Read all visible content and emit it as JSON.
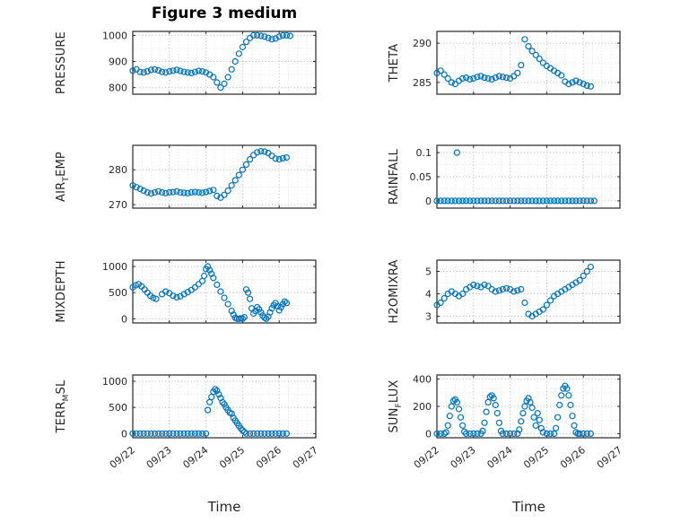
{
  "title": "Figure 3 medium",
  "x_axis": {
    "label": "Time",
    "tick_labels": [
      "09/22",
      "09/23",
      "09/24",
      "09/25",
      "09/26",
      "09/27"
    ],
    "tick_values": [
      0,
      1,
      2,
      3,
      4,
      5
    ],
    "lim": [
      0,
      5
    ]
  },
  "style": {
    "marker_color": "#0072BD",
    "axis_color": "#262626",
    "grid_color": "#b5b5b5",
    "minor_grid_color": "#e2e2e2",
    "title_color": "#000000"
  },
  "chart_data": [
    {
      "type": "scatter",
      "name": "pressure",
      "ylabel": {
        "pre": "PRESSURE",
        "sub": "",
        "post": ""
      },
      "yticks": [
        800,
        900,
        1000
      ],
      "ytick_labels": [
        "800",
        "900",
        "1000"
      ],
      "ylim": [
        775,
        1015
      ],
      "show_xtick_labels": false,
      "x": [
        0,
        0.1,
        0.2,
        0.3,
        0.4,
        0.5,
        0.6,
        0.7,
        0.8,
        0.9,
        1,
        1.1,
        1.2,
        1.3,
        1.4,
        1.5,
        1.6,
        1.7,
        1.8,
        1.9,
        2,
        2.1,
        2.2,
        2.3,
        2.4,
        2.5,
        2.6,
        2.7,
        2.8,
        2.9,
        3,
        3.1,
        3.2,
        3.3,
        3.4,
        3.5,
        3.6,
        3.7,
        3.8,
        3.9,
        4,
        4.1,
        4.2,
        4.3
      ],
      "y": [
        865,
        870,
        860,
        858,
        862,
        868,
        870,
        866,
        860,
        858,
        862,
        865,
        868,
        864,
        860,
        858,
        856,
        860,
        864,
        862,
        858,
        850,
        840,
        820,
        800,
        815,
        840,
        870,
        900,
        930,
        955,
        975,
        990,
        1000,
        1000,
        998,
        995,
        990,
        985,
        988,
        995,
        1000,
        1000,
        998
      ]
    },
    {
      "type": "scatter",
      "name": "theta",
      "ylabel": {
        "pre": "THETA",
        "sub": "",
        "post": ""
      },
      "yticks": [
        285,
        290
      ],
      "ytick_labels": [
        "285",
        "290"
      ],
      "ylim": [
        283.5,
        291.5
      ],
      "show_xtick_labels": false,
      "x": [
        0,
        0.1,
        0.2,
        0.3,
        0.4,
        0.5,
        0.6,
        0.7,
        0.8,
        0.9,
        1,
        1.1,
        1.2,
        1.3,
        1.4,
        1.5,
        1.6,
        1.7,
        1.8,
        1.9,
        2,
        2.1,
        2.2,
        2.3,
        2.4,
        2.5,
        2.6,
        2.7,
        2.8,
        2.9,
        3,
        3.1,
        3.2,
        3.3,
        3.4,
        3.5,
        3.6,
        3.7,
        3.8,
        3.9,
        4,
        4.1,
        4.2
      ],
      "y": [
        286.2,
        286.5,
        286.0,
        285.5,
        285.0,
        284.8,
        285.2,
        285.5,
        285.6,
        285.4,
        285.5,
        285.7,
        285.8,
        285.6,
        285.5,
        285.4,
        285.6,
        285.8,
        285.7,
        285.6,
        285.5,
        285.8,
        286.2,
        287.2,
        290.5,
        289.6,
        289.0,
        288.5,
        288.0,
        287.5,
        287.1,
        286.8,
        286.5,
        286.2,
        285.9,
        285.1,
        284.8,
        285.0,
        285.2,
        285.0,
        284.8,
        284.6,
        284.5
      ]
    },
    {
      "type": "scatter",
      "name": "air-temp",
      "ylabel": {
        "pre": "AIR",
        "sub": "T",
        "post": "EMP"
      },
      "yticks": [
        270,
        280
      ],
      "ytick_labels": [
        "270",
        "280"
      ],
      "ylim": [
        269,
        287
      ],
      "show_xtick_labels": false,
      "x": [
        0,
        0.1,
        0.2,
        0.3,
        0.4,
        0.5,
        0.6,
        0.7,
        0.8,
        0.9,
        1,
        1.1,
        1.2,
        1.3,
        1.4,
        1.5,
        1.6,
        1.7,
        1.8,
        1.9,
        2,
        2.1,
        2.2,
        2.3,
        2.4,
        2.5,
        2.6,
        2.7,
        2.8,
        2.9,
        3,
        3.1,
        3.2,
        3.3,
        3.4,
        3.5,
        3.6,
        3.7,
        3.8,
        3.9,
        4,
        4.1,
        4.2
      ],
      "y": [
        275.5,
        275.0,
        274.5,
        274.0,
        273.5,
        273.2,
        273.5,
        273.8,
        273.5,
        273.3,
        273.5,
        273.6,
        273.8,
        273.5,
        273.4,
        273.3,
        273.5,
        273.6,
        273.5,
        273.4,
        273.6,
        273.9,
        274.2,
        272.5,
        272.0,
        272.8,
        274.0,
        275.5,
        277.0,
        278.5,
        280.0,
        281.5,
        283.0,
        284.2,
        285.0,
        285.3,
        285.2,
        284.8,
        284.0,
        283.2,
        283.0,
        283.3,
        283.5
      ]
    },
    {
      "type": "scatter",
      "name": "rainfall",
      "ylabel": {
        "pre": "RAINFALL",
        "sub": "",
        "post": ""
      },
      "yticks": [
        0,
        0.05,
        0.1
      ],
      "ytick_labels": [
        "0",
        "0.05",
        "0.1"
      ],
      "ylim": [
        -0.015,
        0.115
      ],
      "show_xtick_labels": false,
      "x": [
        0,
        0.1,
        0.2,
        0.3,
        0.4,
        0.5,
        0.6,
        0.7,
        0.8,
        0.9,
        1,
        1.1,
        1.2,
        1.3,
        1.4,
        1.5,
        1.6,
        1.7,
        1.8,
        1.9,
        2,
        2.1,
        2.2,
        2.3,
        2.4,
        2.5,
        2.6,
        2.7,
        2.8,
        2.9,
        3,
        3.1,
        3.2,
        3.3,
        3.4,
        3.5,
        3.6,
        3.7,
        3.8,
        3.9,
        4,
        4.1,
        4.2,
        4.3,
        0.55
      ],
      "y": [
        0,
        0,
        0,
        0,
        0,
        0,
        0,
        0,
        0,
        0,
        0,
        0,
        0,
        0,
        0,
        0,
        0,
        0,
        0,
        0,
        0,
        0,
        0,
        0,
        0,
        0,
        0,
        0,
        0,
        0,
        0,
        0,
        0,
        0,
        0,
        0,
        0,
        0,
        0,
        0,
        0,
        0,
        0,
        0,
        0.1
      ]
    },
    {
      "type": "scatter",
      "name": "mixdepth",
      "ylabel": {
        "pre": "MIXDEPTH",
        "sub": "",
        "post": ""
      },
      "yticks": [
        0,
        500,
        1000
      ],
      "ytick_labels": [
        "0",
        "500",
        "1000"
      ],
      "ylim": [
        -80,
        1120
      ],
      "show_xtick_labels": false,
      "x": [
        0,
        0.08,
        0.16,
        0.24,
        0.32,
        0.4,
        0.48,
        0.56,
        0.64,
        0.8,
        0.9,
        1,
        1.1,
        1.2,
        1.3,
        1.4,
        1.5,
        1.6,
        1.7,
        1.8,
        1.9,
        1.95,
        2,
        2.05,
        2.1,
        2.15,
        2.2,
        2.3,
        2.4,
        2.5,
        2.6,
        2.7,
        2.75,
        2.8,
        2.85,
        2.9,
        2.95,
        3,
        3.05,
        3.1,
        3.15,
        3.2,
        3.25,
        3.3,
        3.35,
        3.4,
        3.45,
        3.5,
        3.55,
        3.6,
        3.65,
        3.7,
        3.75,
        3.8,
        3.85,
        3.9,
        3.95,
        4,
        4.05,
        4.1,
        4.15,
        4.2
      ],
      "y": [
        600,
        640,
        660,
        620,
        560,
        500,
        440,
        400,
        380,
        470,
        520,
        490,
        440,
        410,
        430,
        470,
        510,
        550,
        600,
        660,
        720,
        820,
        950,
        1000,
        930,
        860,
        780,
        650,
        520,
        400,
        280,
        150,
        80,
        20,
        0,
        0,
        10,
        0,
        30,
        560,
        500,
        380,
        200,
        100,
        150,
        220,
        180,
        120,
        60,
        20,
        0,
        40,
        120,
        200,
        260,
        300,
        240,
        160,
        220,
        280,
        330,
        300
      ]
    },
    {
      "type": "scatter",
      "name": "h2omixra",
      "ylabel": {
        "pre": "H2OMIXRA",
        "sub": "",
        "post": ""
      },
      "yticks": [
        3,
        4,
        5
      ],
      "ytick_labels": [
        "3",
        "4",
        "5"
      ],
      "ylim": [
        2.7,
        5.5
      ],
      "show_xtick_labels": false,
      "x": [
        0,
        0.1,
        0.2,
        0.3,
        0.4,
        0.5,
        0.6,
        0.7,
        0.8,
        0.9,
        1,
        1.1,
        1.2,
        1.3,
        1.4,
        1.5,
        1.6,
        1.7,
        1.8,
        1.9,
        2,
        2.1,
        2.2,
        2.3,
        2.4,
        2.5,
        2.6,
        2.7,
        2.8,
        2.9,
        3,
        3.1,
        3.2,
        3.3,
        3.4,
        3.5,
        3.6,
        3.7,
        3.8,
        3.9,
        4,
        4.1,
        4.2
      ],
      "y": [
        3.5,
        3.6,
        3.8,
        4.0,
        4.1,
        4.0,
        3.9,
        4.0,
        4.2,
        4.3,
        4.4,
        4.35,
        4.3,
        4.4,
        4.35,
        4.2,
        4.1,
        4.15,
        4.2,
        4.25,
        4.2,
        4.1,
        4.15,
        4.2,
        3.6,
        3.1,
        3.0,
        3.1,
        3.2,
        3.3,
        3.5,
        3.7,
        3.9,
        4.0,
        4.1,
        4.2,
        4.3,
        4.4,
        4.5,
        4.6,
        4.8,
        5.0,
        5.2
      ]
    },
    {
      "type": "scatter",
      "name": "terr-msl",
      "ylabel": {
        "pre": "TERR",
        "sub": "M",
        "post": "SL"
      },
      "yticks": [
        0,
        500,
        1000
      ],
      "ytick_labels": [
        "0",
        "500",
        "1000"
      ],
      "ylim": [
        -80,
        1120
      ],
      "show_xtick_labels": true,
      "x": [
        0,
        0.1,
        0.2,
        0.3,
        0.4,
        0.5,
        0.6,
        0.7,
        0.8,
        0.9,
        1,
        1.1,
        1.2,
        1.3,
        1.4,
        1.5,
        1.6,
        1.7,
        1.8,
        1.9,
        2,
        2.05,
        2.1,
        2.15,
        2.2,
        2.25,
        2.3,
        2.35,
        2.4,
        2.45,
        2.5,
        2.55,
        2.6,
        2.65,
        2.7,
        2.75,
        2.8,
        2.85,
        2.9,
        2.95,
        3,
        3.05,
        3.1,
        3.2,
        3.3,
        3.4,
        3.5,
        3.6,
        3.7,
        3.8,
        3.9,
        4,
        4.1,
        4.2
      ],
      "y": [
        0,
        0,
        0,
        0,
        0,
        0,
        0,
        0,
        0,
        0,
        0,
        0,
        0,
        0,
        0,
        0,
        0,
        0,
        0,
        0,
        0,
        450,
        600,
        700,
        800,
        850,
        820,
        750,
        680,
        600,
        560,
        500,
        450,
        400,
        380,
        300,
        250,
        200,
        150,
        100,
        60,
        30,
        0,
        0,
        0,
        0,
        0,
        0,
        0,
        0,
        0,
        0,
        0,
        0
      ]
    },
    {
      "type": "scatter",
      "name": "sun-flux",
      "ylabel": {
        "pre": "SUN",
        "sub": "F",
        "post": "LUX"
      },
      "yticks": [
        0,
        200,
        400
      ],
      "ytick_labels": [
        "0",
        "200",
        "400"
      ],
      "ylim": [
        -30,
        430
      ],
      "show_xtick_labels": true,
      "x": [
        0,
        0.1,
        0.2,
        0.25,
        0.3,
        0.35,
        0.4,
        0.45,
        0.5,
        0.55,
        0.6,
        0.65,
        0.7,
        0.75,
        0.8,
        0.9,
        1,
        1.1,
        1.2,
        1.25,
        1.3,
        1.35,
        1.4,
        1.45,
        1.5,
        1.55,
        1.6,
        1.65,
        1.7,
        1.75,
        1.8,
        1.9,
        2,
        2.1,
        2.2,
        2.25,
        2.3,
        2.35,
        2.4,
        2.45,
        2.5,
        2.55,
        2.6,
        2.65,
        2.7,
        2.75,
        2.8,
        2.85,
        2.9,
        3,
        3.1,
        3.2,
        3.25,
        3.3,
        3.35,
        3.4,
        3.45,
        3.5,
        3.55,
        3.6,
        3.65,
        3.7,
        3.75,
        3.8,
        3.85,
        3.9,
        4,
        4.1,
        4.2
      ],
      "y": [
        0,
        0,
        0,
        10,
        60,
        130,
        200,
        240,
        250,
        230,
        180,
        120,
        60,
        15,
        0,
        0,
        0,
        0,
        0,
        20,
        80,
        160,
        230,
        270,
        280,
        260,
        210,
        150,
        80,
        20,
        0,
        0,
        0,
        0,
        0,
        30,
        90,
        150,
        200,
        240,
        260,
        230,
        190,
        120,
        60,
        150,
        100,
        40,
        10,
        0,
        0,
        0,
        40,
        120,
        210,
        280,
        330,
        350,
        330,
        280,
        210,
        130,
        60,
        10,
        0,
        0,
        0,
        0,
        0
      ]
    }
  ]
}
